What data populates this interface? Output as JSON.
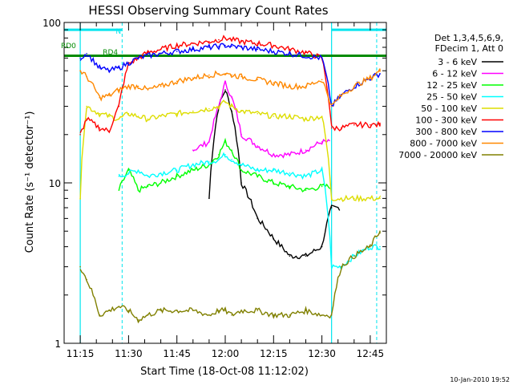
{
  "chart_data": {
    "type": "line",
    "title": "HESSI Observing Summary Count Rates",
    "xlabel": "Start Time (18-Oct-08 11:12:02)",
    "ylabel": "Count Rate (s⁻¹ detector⁻¹)",
    "yscale": "log",
    "ylim": [
      1,
      100
    ],
    "xlim": [
      "11:10",
      "12:50"
    ],
    "x_ticks": [
      "11:15",
      "11:30",
      "11:45",
      "12:00",
      "12:15",
      "12:30",
      "12:45"
    ],
    "y_ticks": [
      "1",
      "10",
      "100"
    ],
    "legend_position": "right",
    "legend_header": [
      "Det 1,3,4,5,6,9,",
      "FDecim 1, Att 0"
    ],
    "timestamp": "10-Jan-2010 19:52",
    "annotations": [
      {
        "label": "N",
        "time": "11:26"
      },
      {
        "label": "RD0",
        "time": "11:10"
      },
      {
        "label": "RD4",
        "time": "11:22"
      }
    ],
    "markers": {
      "solid_vertical_times": [
        "11:15",
        "12:33"
      ],
      "dashed_vertical_times": [
        "11:28",
        "12:47"
      ],
      "solid_color": "#00e5ee",
      "night_bar_color": "#00e5ee",
      "saa_bar_color": "#008b00",
      "night_bar_spans": [
        [
          "11:10",
          "11:28"
        ],
        [
          "12:33",
          "12:50"
        ]
      ],
      "saa_bar_spans": [
        [
          "11:10",
          "12:50"
        ]
      ]
    },
    "x": [
      "11:15",
      "11:17",
      "11:21",
      "11:24",
      "11:27",
      "11:30",
      "11:33",
      "11:36",
      "11:40",
      "11:45",
      "11:50",
      "11:55",
      "11:58",
      "12:00",
      "12:02",
      "12:05",
      "12:10",
      "12:15",
      "12:20",
      "12:25",
      "12:30",
      "12:33",
      "12:36",
      "12:40",
      "12:45",
      "12:48"
    ],
    "series": [
      {
        "name": "3 - 6 keV",
        "color": "#000000",
        "values": [
          null,
          null,
          null,
          null,
          null,
          null,
          null,
          null,
          null,
          null,
          null,
          8,
          30,
          38,
          28,
          10,
          6,
          4.5,
          3.5,
          3.5,
          4,
          7,
          null,
          null,
          null,
          null
        ]
      },
      {
        "name": "6 - 12 keV",
        "color": "#ff00ff",
        "values": [
          null,
          null,
          null,
          null,
          null,
          null,
          null,
          null,
          null,
          null,
          16,
          18,
          30,
          42,
          34,
          20,
          17,
          15,
          15,
          16,
          18,
          null,
          null,
          null,
          null,
          null
        ]
      },
      {
        "name": "12 - 25 keV",
        "color": "#00ff00",
        "values": [
          null,
          null,
          null,
          null,
          9,
          12,
          9,
          9.5,
          10,
          11,
          12,
          13,
          15,
          18,
          16,
          12,
          11,
          10,
          9.5,
          9,
          9.5,
          null,
          null,
          null,
          null,
          null
        ]
      },
      {
        "name": "25 - 50 keV",
        "color": "#00ffff",
        "values": [
          null,
          null,
          null,
          null,
          11,
          11.5,
          12,
          11,
          11.5,
          12,
          13,
          13.5,
          14,
          15,
          14,
          13,
          12,
          12,
          11.5,
          11,
          12,
          3,
          3,
          3.5,
          4,
          4
        ]
      },
      {
        "name": "50 - 100 keV",
        "color": "#dddd00",
        "values": [
          8,
          30,
          27,
          26,
          25,
          27,
          26,
          25,
          26,
          27,
          28,
          29,
          30,
          32,
          30,
          28,
          27,
          26,
          26,
          25,
          26,
          8,
          8,
          8,
          8,
          8
        ]
      },
      {
        "name": "100 - 300 keV",
        "color": "#ff0000",
        "values": [
          20,
          25,
          22,
          21,
          30,
          55,
          60,
          65,
          68,
          72,
          74,
          76,
          78,
          80,
          78,
          76,
          74,
          72,
          68,
          65,
          60,
          22,
          22,
          23,
          23,
          23
        ]
      },
      {
        "name": "300 - 800 keV",
        "color": "#0000ff",
        "values": [
          60,
          64,
          52,
          50,
          52,
          56,
          60,
          62,
          64,
          66,
          68,
          70,
          71,
          72,
          71,
          70,
          68,
          66,
          64,
          62,
          60,
          30,
          35,
          40,
          45,
          48
        ]
      },
      {
        "name": "800 - 7000 keV",
        "color": "#ff8800",
        "values": [
          50,
          46,
          34,
          35,
          38,
          40,
          40,
          38,
          40,
          43,
          45,
          47,
          48,
          48,
          47,
          46,
          44,
          42,
          40,
          40,
          44,
          30,
          35,
          40,
          45,
          50
        ]
      },
      {
        "name": "7000 - 20000 keV",
        "color": "#808000",
        "values": [
          3,
          2.5,
          1.5,
          1.6,
          1.7,
          1.6,
          1.4,
          1.5,
          1.6,
          1.6,
          1.6,
          1.5,
          1.6,
          1.6,
          1.5,
          1.6,
          1.6,
          1.5,
          1.5,
          1.6,
          1.5,
          1.5,
          3,
          3.5,
          4,
          5
        ]
      }
    ]
  }
}
